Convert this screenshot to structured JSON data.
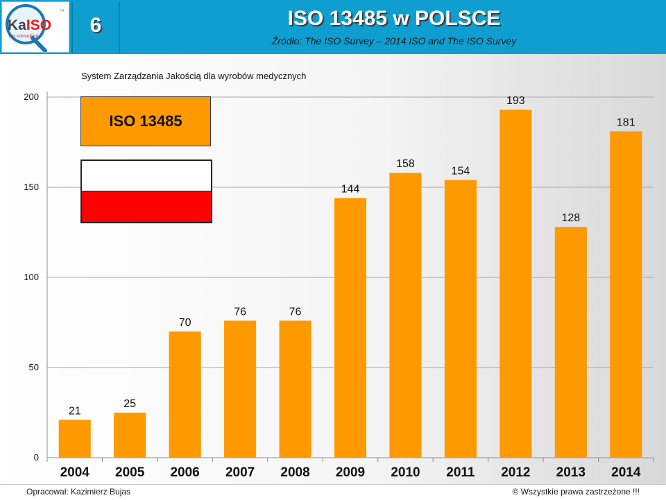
{
  "header": {
    "slide_number": "6",
    "title": "ISO 13485 w POLSCE",
    "subtitle": "Źródło: The ISO Survey – 2014   ISO and The ISO Survey",
    "logo": {
      "brand": "KaISO",
      "tagline": "iso consulting",
      "letter": "Q",
      "marks": "™"
    }
  },
  "footer": {
    "author": "Opracował: Kazimierz Bujas",
    "copyright": "© Wszystkie prawa zastrzeżone !!!"
  },
  "colors": {
    "header_bg": "#0e9fd0",
    "bar": "#ff9900",
    "flag_white": "#ffffff",
    "flag_red": "#ff0000"
  },
  "chart_data": {
    "type": "bar",
    "title": "System Zarządzania Jakością dla wyrobów medycznych",
    "legend_label": "ISO 13485",
    "categories": [
      "2004",
      "2005",
      "2006",
      "2007",
      "2008",
      "2009",
      "2010",
      "2011",
      "2012",
      "2013",
      "2014"
    ],
    "values": [
      21,
      25,
      70,
      76,
      76,
      144,
      158,
      154,
      193,
      128,
      181
    ],
    "ylim": [
      0,
      200
    ],
    "yticks": [
      0,
      50,
      100,
      150,
      200
    ],
    "grid": true,
    "legend_placement": "top-left"
  }
}
